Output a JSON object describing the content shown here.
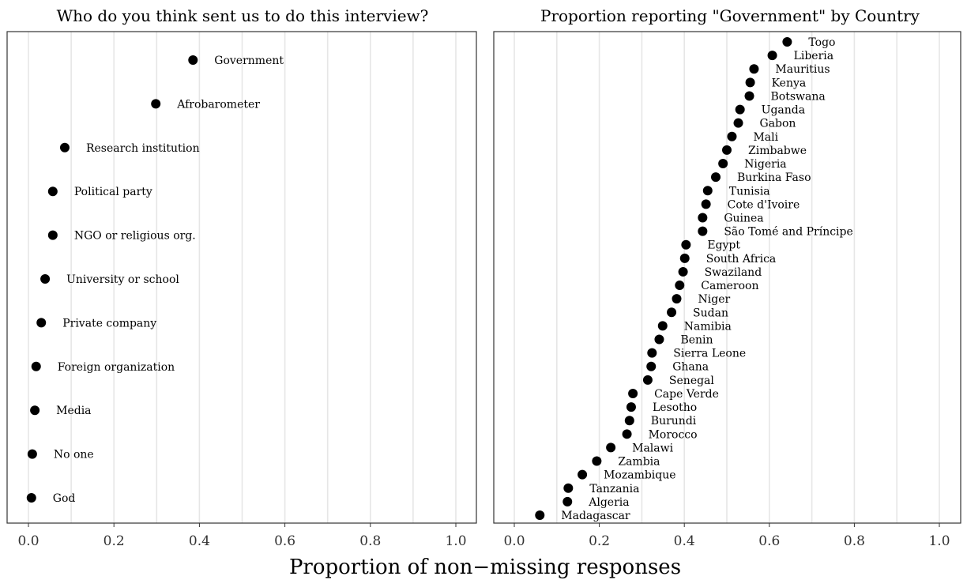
{
  "xlabel": "Proportion of non−missing responses",
  "colors": {
    "point": "#000000",
    "grid": "#e6e6e6",
    "border": "#333333",
    "background": "#ffffff"
  },
  "chart_data": [
    {
      "type": "scatter",
      "title": "Who do you think sent us to do this interview?",
      "xlim": [
        0,
        1
      ],
      "xticks": [
        "0.0",
        "0.2",
        "0.4",
        "0.6",
        "0.8",
        "1.0"
      ],
      "grid": true,
      "legend": "none",
      "categories": [
        "Government",
        "Afrobarometer",
        "Research institution",
        "Political party",
        "NGO or religious org.",
        "University or school",
        "Private company",
        "Foreign organization",
        "Media",
        "No one",
        "God"
      ],
      "values": [
        0.385,
        0.298,
        0.085,
        0.057,
        0.057,
        0.039,
        0.03,
        0.018,
        0.015,
        0.009,
        0.007
      ]
    },
    {
      "type": "scatter",
      "title": "Proportion reporting \"Government\" by Country",
      "xlim": [
        0,
        1
      ],
      "xticks": [
        "0.0",
        "0.2",
        "0.4",
        "0.6",
        "0.8",
        "1.0"
      ],
      "grid": true,
      "legend": "none",
      "categories": [
        "Togo",
        "Liberia",
        "Mauritius",
        "Kenya",
        "Botswana",
        "Uganda",
        "Gabon",
        "Mali",
        "Zimbabwe",
        "Nigeria",
        "Burkina Faso",
        "Tunisia",
        "Cote d'Ivoire",
        "Guinea",
        "São Tomé and Príncipe",
        "Egypt",
        "South Africa",
        "Swaziland",
        "Cameroon",
        "Niger",
        "Sudan",
        "Namibia",
        "Benin",
        "Sierra Leone",
        "Ghana",
        "Senegal",
        "Cape Verde",
        "Lesotho",
        "Burundi",
        "Morocco",
        "Malawi",
        "Zambia",
        "Mozambique",
        "Tanzania",
        "Algeria",
        "Madagascar"
      ],
      "values": [
        0.642,
        0.607,
        0.564,
        0.555,
        0.553,
        0.531,
        0.527,
        0.512,
        0.5,
        0.491,
        0.474,
        0.455,
        0.451,
        0.443,
        0.443,
        0.404,
        0.401,
        0.397,
        0.389,
        0.382,
        0.37,
        0.349,
        0.341,
        0.324,
        0.322,
        0.314,
        0.279,
        0.275,
        0.271,
        0.265,
        0.227,
        0.194,
        0.16,
        0.127,
        0.125,
        0.06
      ]
    }
  ]
}
